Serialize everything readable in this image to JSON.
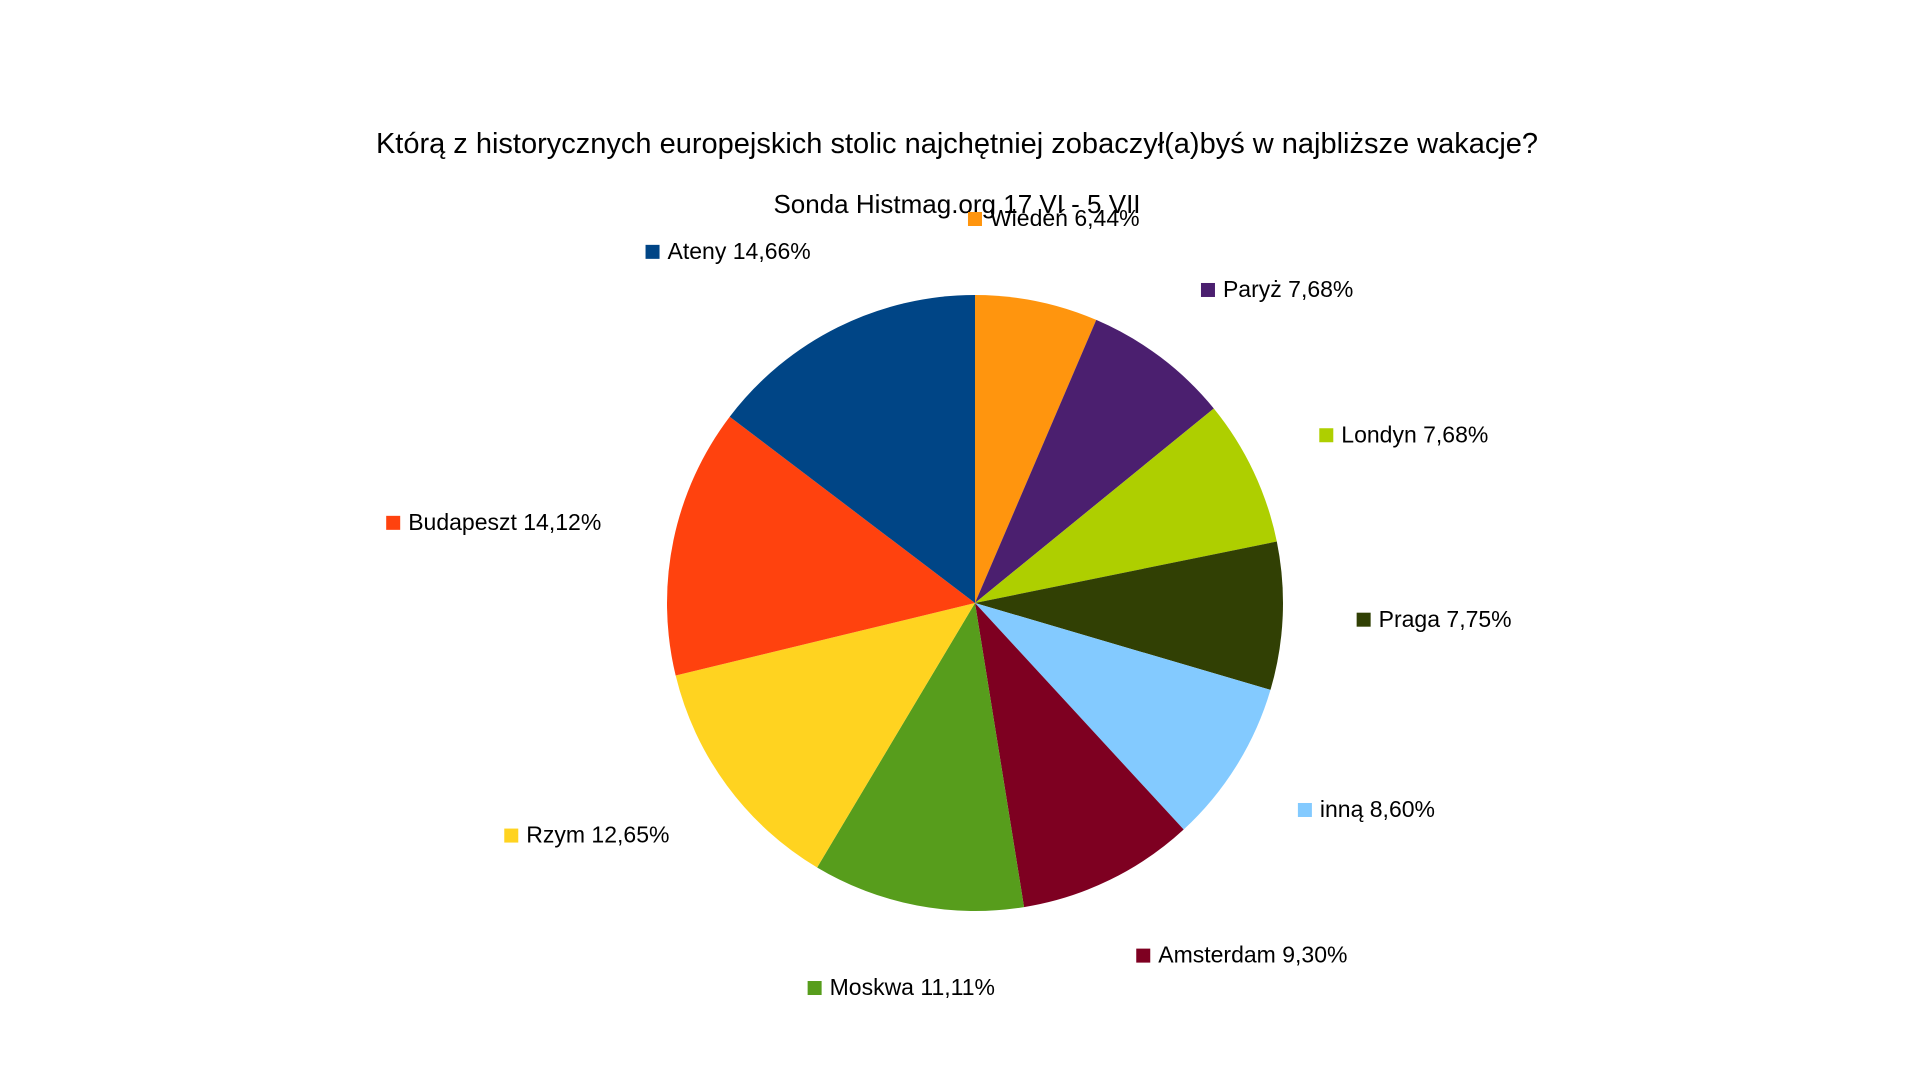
{
  "chart_data": {
    "type": "pie",
    "title": "Którą z historycznych europejskich stolic najchętniej zobaczył(a)byś w najbliższe wakacje?",
    "subtitle": "Sonda Histmag.org 17 VI - 5 VII",
    "start": "12 o'clock, clockwise",
    "slices": [
      {
        "label": "Wiedeń",
        "value": 6.44,
        "display": "6,44%",
        "color": "#ff950e"
      },
      {
        "label": "Paryż",
        "value": 7.68,
        "display": "7,68%",
        "color": "#4b1f6f"
      },
      {
        "label": "Londyn",
        "value": 7.68,
        "display": "7,68%",
        "color": "#aecf00"
      },
      {
        "label": "Praga",
        "value": 7.75,
        "display": "7,75%",
        "color": "#314004"
      },
      {
        "label": "inną",
        "value": 8.6,
        "display": "8,60%",
        "color": "#83caff"
      },
      {
        "label": "Amsterdam",
        "value": 9.3,
        "display": "9,30%",
        "color": "#7e0021"
      },
      {
        "label": "Moskwa",
        "value": 11.11,
        "display": "11,11%",
        "color": "#579d1c"
      },
      {
        "label": "Rzym",
        "value": 12.65,
        "display": "12,65%",
        "color": "#ffd320"
      },
      {
        "label": "Budapeszt",
        "value": 14.12,
        "display": "14,12%",
        "color": "#ff420e"
      },
      {
        "label": "Ateny",
        "value": 14.66,
        "display": "14,66%",
        "color": "#004586"
      }
    ]
  }
}
